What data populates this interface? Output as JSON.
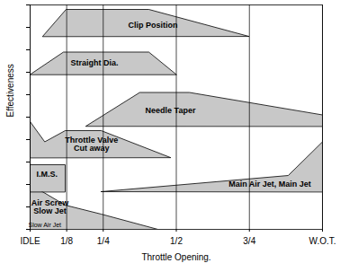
{
  "chart_data": {
    "type": "area",
    "x_label": "Throttle Opening.",
    "y_label": "Effectiveness",
    "xlim": [
      0,
      1
    ],
    "xticks": [
      {
        "value": 0,
        "label": "IDLE"
      },
      {
        "value": 0.125,
        "label": "1/8"
      },
      {
        "value": 0.25,
        "label": "1/4"
      },
      {
        "value": 0.5,
        "label": "1/2"
      },
      {
        "value": 0.75,
        "label": "3/4"
      },
      {
        "value": 1,
        "label": "W.O.T."
      }
    ],
    "ylim": [
      0,
      10
    ],
    "yticks": [
      0,
      1,
      2,
      3,
      4,
      5,
      6,
      7,
      8,
      9,
      10
    ],
    "tick_labels": "x",
    "grid": true,
    "color": "#c8c8c8",
    "series": [
      {
        "name": "Clip Position",
        "points": [
          [
            0.043,
            8.6
          ],
          [
            0.123,
            9.8
          ],
          [
            0.406,
            9.8
          ],
          [
            0.748,
            8.6
          ]
        ],
        "label": [
          0.42,
          9.1
        ]
      },
      {
        "name": "Straight Dia.",
        "points": [
          [
            0,
            6.9
          ],
          [
            0.114,
            7.9
          ],
          [
            0.406,
            7.9
          ],
          [
            0.5,
            6.9
          ]
        ],
        "label": [
          0.22,
          7.4
        ]
      },
      {
        "name": "Needle Taper",
        "points": [
          [
            0.191,
            4.6
          ],
          [
            0.375,
            6.1
          ],
          [
            0.545,
            6.1
          ],
          [
            1,
            5.1
          ],
          [
            1,
            4.6
          ]
        ],
        "label": [
          0.48,
          5.28
        ]
      },
      {
        "name": "Throttle Valve\nCut away",
        "points": [
          [
            0,
            3.2
          ],
          [
            0,
            4.8
          ],
          [
            0.05,
            3.9
          ],
          [
            0.12,
            4.4
          ],
          [
            0.243,
            4.4
          ],
          [
            0.48,
            3.2
          ]
        ],
        "label": [
          0.21,
          3.8
        ]
      },
      {
        "name": "Air Screw\nSlow Jet",
        "points": [
          [
            0,
            2
          ],
          [
            0.12,
            1.08
          ],
          [
            0.243,
            0.68
          ],
          [
            0.437,
            0
          ],
          [
            0,
            0
          ]
        ],
        "label": [
          0.068,
          1.0
        ]
      },
      {
        "name": "I.M.S.",
        "points": [
          [
            0,
            1.68
          ],
          [
            0,
            2.88
          ],
          [
            0.12,
            2.88
          ],
          [
            0.12,
            1.68
          ]
        ],
        "label": [
          0.058,
          2.44
        ]
      },
      {
        "name": "Main Air Jet, Main Jet",
        "points": [
          [
            0.243,
            1.68
          ],
          [
            0.883,
            2.4
          ],
          [
            1,
            3.9
          ],
          [
            1,
            1.68
          ]
        ],
        "label": [
          0.82,
          2.0
        ]
      }
    ],
    "annotations": [
      {
        "text": "Slow Air Jet",
        "x": 0.05,
        "y": 0.2
      }
    ]
  }
}
